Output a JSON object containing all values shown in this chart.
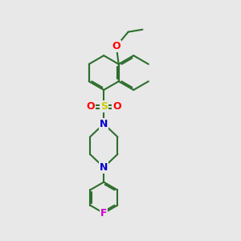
{
  "background_color": "#e8e8e8",
  "bond_color": "#2d6e2d",
  "atom_colors": {
    "O": "#ff0000",
    "S": "#cccc00",
    "N": "#0000cc",
    "F": "#cc00cc"
  },
  "line_width": 1.5,
  "figsize": [
    3.0,
    3.0
  ],
  "dpi": 100
}
